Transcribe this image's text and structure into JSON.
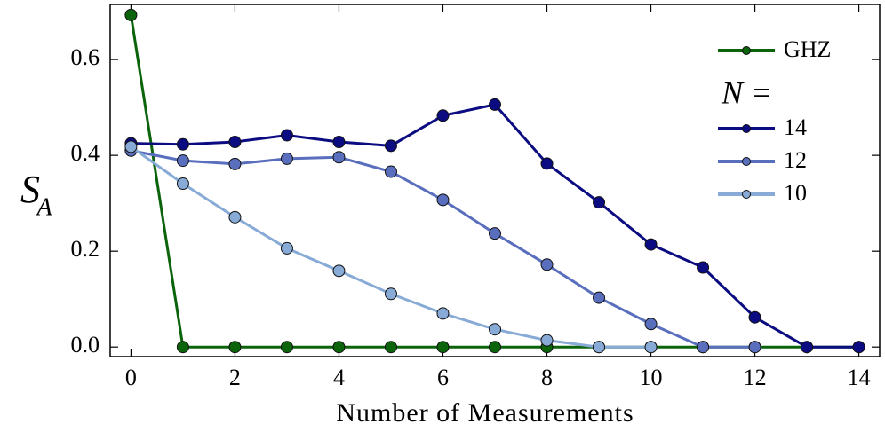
{
  "chart_data": {
    "type": "line",
    "xlabel": "Number of Measurements",
    "ylabel": "S",
    "ylabel_sub": "A",
    "legend_title": "N =",
    "legend": "upper right",
    "x": [
      0,
      1,
      2,
      3,
      4,
      5,
      6,
      7,
      8,
      9,
      10,
      11,
      12,
      13,
      14
    ],
    "series": [
      {
        "name": "GHZ",
        "color": "#0b640b",
        "values": [
          0.693,
          0,
          0,
          0,
          0,
          0,
          0,
          0,
          0,
          0,
          0,
          0,
          0,
          0,
          0
        ]
      },
      {
        "name": "14",
        "color": "#0c0c82",
        "values": [
          0.425,
          0.423,
          0.428,
          0.442,
          0.428,
          0.42,
          0.483,
          0.506,
          0.383,
          0.302,
          0.214,
          0.166,
          0.062,
          0,
          0
        ]
      },
      {
        "name": "12",
        "color": "#5a6ebe",
        "values": [
          0.41,
          0.389,
          0.382,
          0.393,
          0.396,
          0.366,
          0.307,
          0.237,
          0.172,
          0.103,
          0.048,
          0,
          0,
          null,
          null
        ]
      },
      {
        "name": "10",
        "color": "#88aad6",
        "values": [
          0.418,
          0.341,
          0.271,
          0.206,
          0.159,
          0.111,
          0.07,
          0.037,
          0.014,
          0,
          0,
          null,
          null,
          null,
          null
        ]
      }
    ],
    "xlim": [
      -0.4,
      14.4
    ],
    "ylim": [
      -0.02,
      0.715
    ],
    "xticks": [
      0,
      2,
      4,
      6,
      8,
      10,
      12,
      14
    ],
    "yticks": [
      {
        "value": 0,
        "label": "0.0"
      },
      {
        "value": 0.2,
        "label": "0.2"
      },
      {
        "value": 0.4,
        "label": "0.4"
      },
      {
        "value": 0.6,
        "label": "0.6"
      }
    ]
  }
}
